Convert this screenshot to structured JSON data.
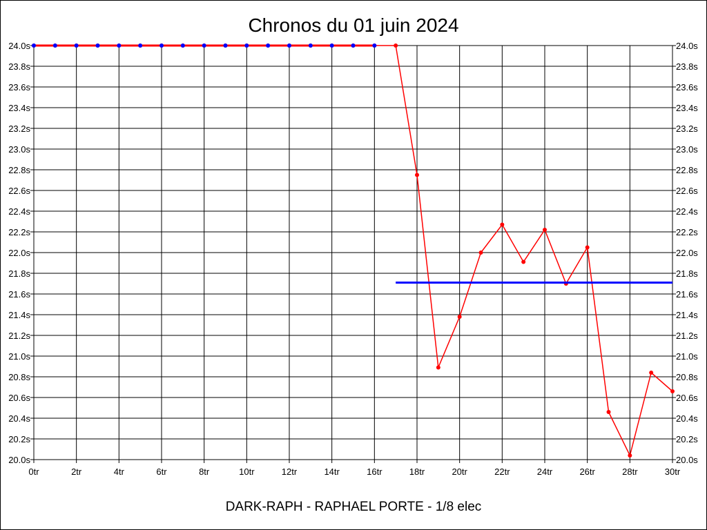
{
  "chart_data": {
    "type": "line",
    "title": "Chronos du 01 juin 2024",
    "footer": "DARK-RAPH - RAPHAEL PORTE - 1/8 elec",
    "xlabel": "",
    "ylabel": "",
    "xlim": [
      0,
      30
    ],
    "ylim": [
      20.0,
      24.0
    ],
    "x_ticks": [
      0,
      2,
      4,
      6,
      8,
      10,
      12,
      14,
      16,
      18,
      20,
      22,
      24,
      26,
      28,
      30
    ],
    "x_tick_labels": [
      "0tr",
      "2tr",
      "4tr",
      "6tr",
      "8tr",
      "10tr",
      "12tr",
      "14tr",
      "16tr",
      "18tr",
      "20tr",
      "22tr",
      "24tr",
      "26tr",
      "28tr",
      "30tr"
    ],
    "y_ticks": [
      20.0,
      20.2,
      20.4,
      20.6,
      20.8,
      21.0,
      21.2,
      21.4,
      21.6,
      21.8,
      22.0,
      22.2,
      22.4,
      22.6,
      22.8,
      23.0,
      23.2,
      23.4,
      23.6,
      23.8,
      24.0
    ],
    "y_tick_labels": [
      "20.0s",
      "20.2s",
      "20.4s",
      "20.6s",
      "20.8s",
      "21.0s",
      "21.2s",
      "21.4s",
      "21.6s",
      "21.8s",
      "22.0s",
      "22.2s",
      "22.4s",
      "22.6s",
      "22.8s",
      "23.0s",
      "23.2s",
      "23.4s",
      "23.6s",
      "23.8s",
      "24.0s"
    ],
    "grid": true,
    "series": [
      {
        "color": "#ff0000",
        "x": [
          0,
          1,
          2,
          3,
          4,
          5,
          6,
          7,
          8,
          9,
          10,
          11,
          12,
          13,
          14,
          15,
          16,
          17,
          18,
          19,
          20,
          21,
          22,
          23,
          24,
          25,
          26,
          27,
          28,
          29,
          30
        ],
        "values": [
          24.0,
          24.0,
          24.0,
          24.0,
          24.0,
          24.0,
          24.0,
          24.0,
          24.0,
          24.0,
          24.0,
          24.0,
          24.0,
          24.0,
          24.0,
          24.0,
          24.0,
          24.0,
          22.75,
          20.89,
          21.38,
          22.0,
          22.27,
          21.91,
          22.22,
          21.7,
          22.05,
          20.46,
          20.04,
          20.84,
          20.66
        ]
      },
      {
        "color": "#0000ff",
        "style": "markers",
        "x": [
          0,
          1,
          2,
          3,
          4,
          5,
          6,
          7,
          8,
          9,
          10,
          11,
          12,
          13,
          14,
          15,
          16
        ],
        "values": [
          24.0,
          24.0,
          24.0,
          24.0,
          24.0,
          24.0,
          24.0,
          24.0,
          24.0,
          24.0,
          24.0,
          24.0,
          24.0,
          24.0,
          24.0,
          24.0,
          24.0
        ]
      },
      {
        "color": "#0000ff",
        "style": "reference-line",
        "x": [
          17,
          30
        ],
        "values": [
          21.71,
          21.71
        ]
      }
    ]
  }
}
